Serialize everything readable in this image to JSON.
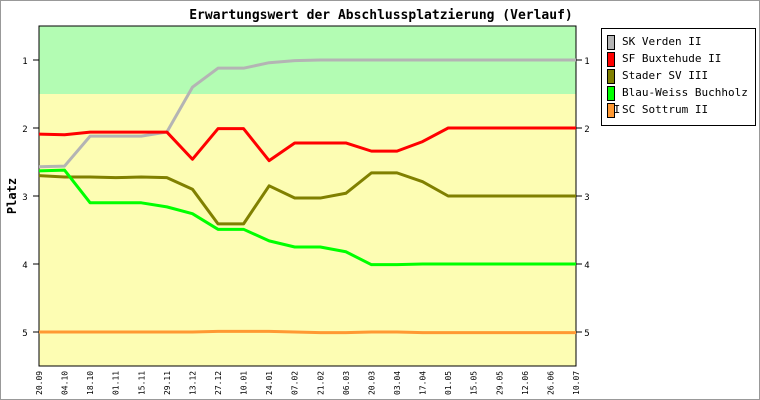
{
  "chart_data": {
    "type": "line",
    "title": "Erwartungswert der Abschlussplatzierung (Verlauf)",
    "xlabel": "",
    "ylabel": "Platz",
    "ylim": [
      0.5,
      5.5
    ],
    "y_inverted": true,
    "yticks": [
      "1",
      "2",
      "3",
      "4",
      "5"
    ],
    "bands": [
      {
        "from": 0.5,
        "to": 1.5,
        "color": "#b3fcb3"
      },
      {
        "from": 1.5,
        "to": 5.5,
        "color": "#fdfdb3"
      }
    ],
    "categories": [
      "20.09",
      "04.10",
      "18.10",
      "01.11",
      "15.11",
      "29.11",
      "13.12",
      "27.12",
      "10.01",
      "24.01",
      "07.02",
      "21.02",
      "06.03",
      "20.03",
      "03.04",
      "17.04",
      "01.05",
      "15.05",
      "29.05",
      "12.06",
      "26.06",
      "10.07"
    ],
    "legend_position": "right",
    "series": [
      {
        "name": "SK Verden II",
        "color": "#b4b4b4",
        "values": [
          2.57,
          2.56,
          2.12,
          2.12,
          2.12,
          2.06,
          1.4,
          1.12,
          1.12,
          1.04,
          1.01,
          1.0,
          1.0,
          1.0,
          1.0,
          1.0,
          1.0,
          1.0,
          1.0,
          1.0,
          1.0,
          1.0
        ]
      },
      {
        "name": "SF Buxtehude II",
        "color": "#ff0000",
        "values": [
          2.09,
          2.1,
          2.06,
          2.06,
          2.06,
          2.06,
          2.46,
          2.01,
          2.01,
          2.48,
          2.22,
          2.22,
          2.22,
          2.34,
          2.34,
          2.2,
          2.0,
          2.0,
          2.0,
          2.0,
          2.0,
          2.0
        ]
      },
      {
        "name": "Stader SV III",
        "color": "#808000",
        "values": [
          2.7,
          2.72,
          2.72,
          2.73,
          2.72,
          2.73,
          2.9,
          3.41,
          3.41,
          2.85,
          3.03,
          3.03,
          2.96,
          2.66,
          2.66,
          2.79,
          3.0,
          3.0,
          3.0,
          3.0,
          3.0,
          3.0
        ]
      },
      {
        "name": "Blau-Weiss Buchholz II",
        "color": "#00ff00",
        "values": [
          2.63,
          2.62,
          3.1,
          3.1,
          3.1,
          3.16,
          3.26,
          3.49,
          3.49,
          3.66,
          3.75,
          3.75,
          3.82,
          4.01,
          4.01,
          4.0,
          4.0,
          4.0,
          4.0,
          4.0,
          4.0,
          4.0
        ]
      },
      {
        "name": "SC Sottrum II",
        "color": "#ff9933",
        "values": [
          5.0,
          5.0,
          5.0,
          5.0,
          5.0,
          5.0,
          5.0,
          4.99,
          4.99,
          4.99,
          5.0,
          5.01,
          5.01,
          5.0,
          5.0,
          5.01,
          5.01,
          5.01,
          5.01,
          5.01,
          5.01,
          5.01
        ]
      }
    ]
  }
}
